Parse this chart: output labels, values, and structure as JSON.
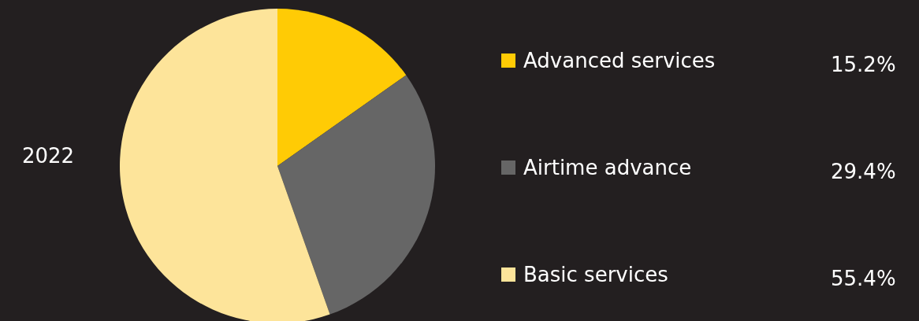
{
  "chart_data": {
    "type": "pie",
    "title": "2022",
    "categories": [
      "Advanced services",
      "Airtime advance",
      "Basic services"
    ],
    "values": [
      15.2,
      29.4,
      55.4
    ],
    "colors": [
      "#ffcb05",
      "#666666",
      "#fde49a"
    ],
    "value_labels": [
      "15.2%",
      "29.4%",
      "55.4%"
    ],
    "legend": "right"
  }
}
